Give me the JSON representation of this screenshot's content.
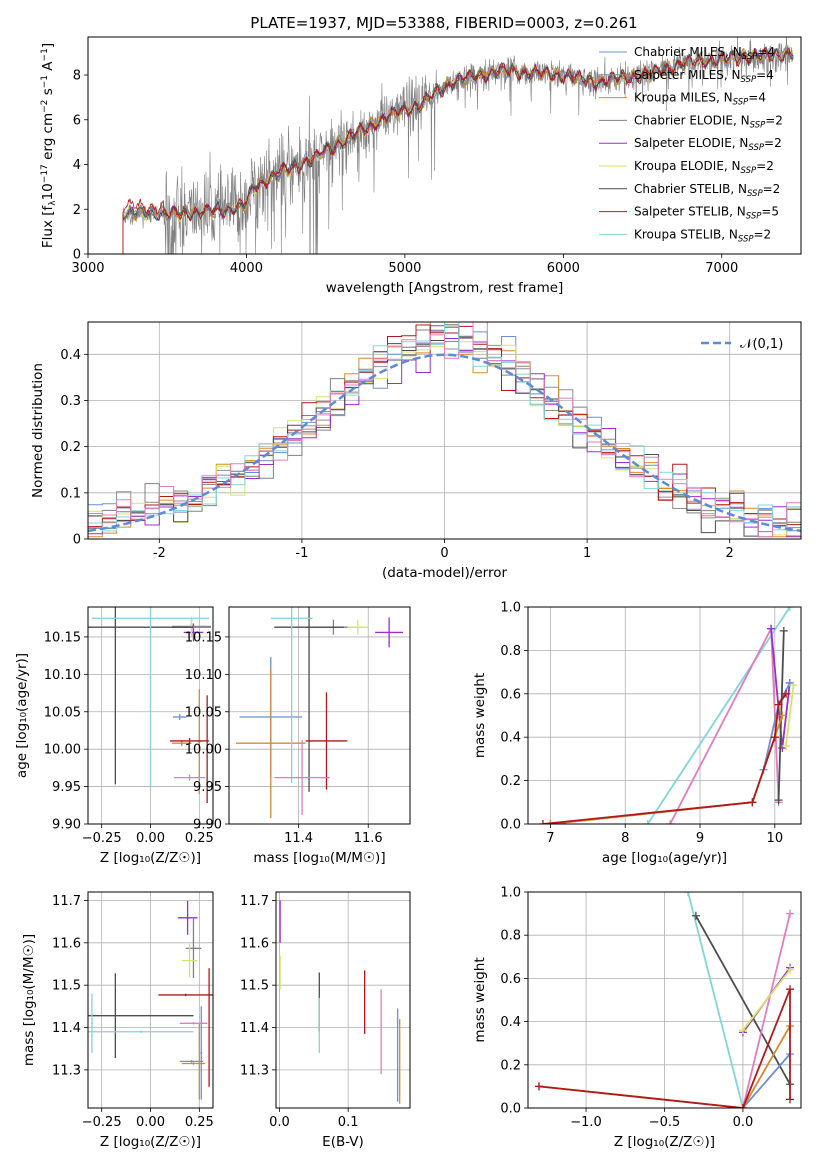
{
  "figure_title": "PLATE=1937, MJD=53388, FIBERID=0003, z=0.261",
  "colors": {
    "Chabrier MILES": "#6a8fd8",
    "Salpeter MILES": "#8f8f8f",
    "Kroupa MILES": "#d98a2b",
    "Chabrier ELODIE": "#808080",
    "Salpeter ELODIE": "#9b30c9",
    "Kroupa ELODIE": "#d6e36a",
    "Chabrier STELIB": "#4d4d4d",
    "Salpeter STELIB": "#b01a1a",
    "Kroupa STELIB": "#7fd6dc",
    "pink": "#e37cbf",
    "normal_curve": "#5b8cd6"
  },
  "chart_data": [
    {
      "id": "spectrum",
      "type": "line",
      "ylabel_html": "Flux [f<tspan dy='3' font-size='9'>λ</tspan><tspan dy='-3'>10</tspan><tspan dy='-5' font-size='9'>−17</tspan><tspan dy='5'> erg cm</tspan><tspan dy='-5' font-size='9'>−2</tspan><tspan dy='5'> s</tspan><tspan dy='-5' font-size='9'>−1</tspan><tspan dy='5'> A</tspan><tspan dy='-5' font-size='9'>−1</tspan><tspan dy='5'>]</tspan>",
      "xlabel": "wavelength [Angstrom, rest frame]",
      "xlim": [
        3000,
        7500
      ],
      "ylim": [
        0,
        9.7
      ],
      "xticks": [
        3000,
        4000,
        5000,
        6000,
        7000
      ],
      "yticks": [
        0,
        2,
        4,
        6,
        8
      ],
      "grid": false,
      "legend_position": "top-right",
      "legend": [
        {
          "name": "Chabrier MILES, N",
          "sub": "SSP",
          "suffix": "=4",
          "color_key": "Chabrier MILES"
        },
        {
          "name": "Salpeter MILES, N",
          "sub": "SSP",
          "suffix": "=4",
          "color_key": "Salpeter MILES"
        },
        {
          "name": "Kroupa MILES, N",
          "sub": "SSP",
          "suffix": "=4",
          "color_key": "Kroupa MILES"
        },
        {
          "name": "Chabrier ELODIE, N",
          "sub": "SSP",
          "suffix": "=2",
          "color_key": "Chabrier ELODIE"
        },
        {
          "name": "Salpeter ELODIE, N",
          "sub": "SSP",
          "suffix": "=2",
          "color_key": "Salpeter ELODIE"
        },
        {
          "name": "Kroupa ELODIE, N",
          "sub": "SSP",
          "suffix": "=2",
          "color_key": "Kroupa ELODIE"
        },
        {
          "name": "Chabrier STELIB, N",
          "sub": "SSP",
          "suffix": "=2",
          "color_key": "Chabrier STELIB"
        },
        {
          "name": "Salpeter STELIB, N",
          "sub": "SSP",
          "suffix": "=5",
          "color_key": "Salpeter STELIB"
        },
        {
          "name": "Kroupa STELIB, N",
          "sub": "SSP",
          "suffix": "=2",
          "color_key": "Kroupa STELIB"
        }
      ],
      "continuum": [
        [
          3220,
          1.8
        ],
        [
          3400,
          1.85
        ],
        [
          3500,
          1.8
        ],
        [
          3700,
          1.9
        ],
        [
          3900,
          2.0
        ],
        [
          3990,
          2.2
        ],
        [
          4050,
          3.0
        ],
        [
          4200,
          3.6
        ],
        [
          4400,
          4.2
        ],
        [
          4700,
          5.4
        ],
        [
          4900,
          6.2
        ],
        [
          5100,
          6.7
        ],
        [
          5300,
          7.7
        ],
        [
          5600,
          8.2
        ],
        [
          6000,
          8.0
        ],
        [
          6200,
          7.7
        ],
        [
          6500,
          8.0
        ],
        [
          6800,
          8.6
        ],
        [
          7000,
          8.7
        ],
        [
          7300,
          8.9
        ],
        [
          7450,
          9.0
        ]
      ],
      "data_start": 3220,
      "data_end": 7450
    },
    {
      "id": "residuals",
      "type": "histogram",
      "xlabel": "(data-model)/error",
      "ylabel": "Normed distribution",
      "xlim": [
        -2.5,
        2.5
      ],
      "ylim": [
        0,
        0.47
      ],
      "xticks": [
        -2,
        -1,
        0,
        1,
        2
      ],
      "yticks": [
        0.0,
        0.1,
        0.2,
        0.3,
        0.4
      ],
      "grid": true,
      "bin_width": 0.1,
      "legend": "𝒩(0,1)",
      "legend_position": "top-right",
      "reference_curve": "normal pdf, mean 0, sigma 1"
    },
    {
      "id": "age_vs_Z",
      "type": "errorbar",
      "xlabel": "Z [log₁₀(Z/Z☉)]",
      "ylabel": "age  [log₁₀(age/yr)]",
      "xlim": [
        -0.32,
        0.32
      ],
      "ylim": [
        9.9,
        10.19
      ],
      "xticks": [
        -0.25,
        0.0,
        0.25
      ],
      "xticklabels": [
        "−0.25",
        "0.00",
        "0.25"
      ],
      "yticks": [
        9.9,
        9.95,
        10.0,
        10.05,
        10.1,
        10.15
      ],
      "yticklabels": [
        "9.90",
        "9.95",
        "10.00",
        "10.05",
        "10.10",
        "10.15"
      ],
      "grid": true,
      "points": [
        {
          "x": 0.15,
          "y": 10.043,
          "xerr": 0.035,
          "yerr": 0.004,
          "c": "Chabrier MILES"
        },
        {
          "x": 0.21,
          "y": 10.164,
          "xerr": 0.1,
          "yerr": 0.004,
          "c": "Salpeter MILES"
        },
        {
          "x": 0.16,
          "y": 10.008,
          "xerr": 0.05,
          "yerr": 0.004,
          "c": "Kroupa MILES"
        },
        {
          "x": 0.25,
          "y": 10.01,
          "xerr": 0.008,
          "yerr": 0.07,
          "c": "Kroupa MILES"
        },
        {
          "x": 0.21,
          "y": 10.163,
          "xerr": 0.1,
          "yerr": 0.012,
          "c": "Chabrier ELODIE"
        },
        {
          "x": 0.22,
          "y": 10.156,
          "xerr": 0.05,
          "yerr": 0.012,
          "c": "Salpeter ELODIE"
        },
        {
          "x": 0.21,
          "y": 10.163,
          "xerr": 0.012,
          "yerr": 0.014,
          "c": "Kroupa ELODIE"
        },
        {
          "x": -0.18,
          "y": 10.163,
          "xerr": 0.4,
          "yerr": 0.21,
          "c": "Chabrier STELIB"
        },
        {
          "x": 0.2,
          "y": 10.011,
          "xerr": 0.1,
          "yerr": 0.004,
          "c": "Salpeter STELIB"
        },
        {
          "x": 0.29,
          "y": 10.0,
          "xerr": 0.004,
          "yerr": 0.072,
          "c": "Salpeter STELIB"
        },
        {
          "x": 0.0,
          "y": 10.175,
          "xerr": 0.3,
          "yerr": 0.225,
          "c": "Kroupa STELIB"
        },
        {
          "x": 0.2,
          "y": 9.962,
          "xerr": 0.08,
          "yerr": 0.004,
          "c": "pink"
        }
      ]
    },
    {
      "id": "age_vs_mass",
      "type": "errorbar",
      "xlabel": "mass [log₁₀(M/M☉)]",
      "xlim": [
        11.2,
        11.72
      ],
      "ylim": [
        9.9,
        10.19
      ],
      "xticks": [
        11.4,
        11.6
      ],
      "xticklabels": [
        "11.4",
        "11.6"
      ],
      "yticks": [
        9.9,
        9.95,
        10.0,
        10.05,
        10.1,
        10.15
      ],
      "yticklabels": [
        "9.90",
        "9.95",
        "10.00",
        "10.05",
        "10.10",
        "10.15"
      ],
      "grid": true,
      "points": [
        {
          "x": 11.32,
          "y": 10.043,
          "xerr": 0.09,
          "yerr": 0.08,
          "c": "Chabrier MILES"
        },
        {
          "x": 11.32,
          "y": 10.008,
          "xerr": 0.1,
          "yerr": 0.1,
          "c": "Kroupa MILES"
        },
        {
          "x": 11.5,
          "y": 10.163,
          "xerr": 0.08,
          "yerr": 0.01,
          "c": "Chabrier ELODIE"
        },
        {
          "x": 11.66,
          "y": 10.156,
          "xerr": 0.04,
          "yerr": 0.02,
          "c": "Salpeter ELODIE"
        },
        {
          "x": 11.57,
          "y": 10.163,
          "xerr": 0.03,
          "yerr": 0.01,
          "c": "Kroupa ELODIE"
        },
        {
          "x": 11.43,
          "y": 10.163,
          "xerr": 0.1,
          "yerr": 0.22,
          "c": "Chabrier STELIB"
        },
        {
          "x": 11.48,
          "y": 10.011,
          "xerr": 0.06,
          "yerr": 0.065,
          "c": "Salpeter STELIB"
        },
        {
          "x": 11.38,
          "y": 10.175,
          "xerr": 0.06,
          "yerr": 0.22,
          "c": "Kroupa STELIB"
        },
        {
          "x": 11.41,
          "y": 9.962,
          "xerr": 0.08,
          "yerr": 0.05,
          "c": "pink"
        }
      ]
    },
    {
      "id": "weight_vs_age",
      "type": "line",
      "xlabel": "age  [log₁₀(age/yr)]",
      "ylabel": "mass weight",
      "xlim": [
        6.7,
        10.35
      ],
      "ylim": [
        0,
        1.0
      ],
      "xticks": [
        7,
        8,
        9,
        10
      ],
      "xticklabels": [
        "7",
        "8",
        "9",
        "10"
      ],
      "yticks": [
        0,
        0.2,
        0.4,
        0.6,
        0.8,
        1.0
      ],
      "yticklabels": [
        "0.0",
        "0.2",
        "0.4",
        "0.6",
        "0.8",
        "1.0"
      ],
      "grid": true,
      "series": [
        {
          "c": "Kroupa STELIB",
          "points": [
            [
              8.3,
              0.0
            ],
            [
              10.2,
              1.0
            ]
          ]
        },
        {
          "c": "pink",
          "points": [
            [
              8.6,
              0.0
            ],
            [
              9.95,
              0.9
            ],
            [
              10.05,
              0.1
            ]
          ]
        },
        {
          "c": "Salpeter ELODIE",
          "points": [
            [
              9.95,
              0.9
            ],
            [
              10.1,
              0.35
            ],
            [
              10.2,
              0.65
            ]
          ]
        },
        {
          "c": "Chabrier MILES",
          "points": [
            [
              7.0,
              0.0
            ],
            [
              9.7,
              0.1
            ],
            [
              9.85,
              0.25
            ],
            [
              10.05,
              0.55
            ],
            [
              10.2,
              0.65
            ]
          ]
        },
        {
          "c": "Kroupa ELODIE",
          "points": [
            [
              10.15,
              0.36
            ],
            [
              10.25,
              0.64
            ]
          ]
        },
        {
          "c": "Chabrier STELIB",
          "points": [
            [
              10.05,
              0.11
            ],
            [
              10.12,
              0.89
            ]
          ]
        },
        {
          "c": "Kroupa MILES",
          "points": [
            [
              7.0,
              0.0
            ],
            [
              9.7,
              0.1
            ],
            [
              10.0,
              0.4
            ],
            [
              10.1,
              0.5
            ]
          ]
        },
        {
          "c": "Salpeter STELIB",
          "points": [
            [
              6.9,
              0.0
            ],
            [
              9.7,
              0.1
            ],
            [
              10.0,
              0.4
            ],
            [
              10.05,
              0.55
            ],
            [
              10.15,
              0.6
            ]
          ]
        }
      ]
    },
    {
      "id": "mass_vs_Z",
      "type": "errorbar",
      "xlabel": "Z [log₁₀(Z/Z☉)]",
      "ylabel": "mass [log₁₀(M/M☉)]",
      "xlim": [
        -0.32,
        0.32
      ],
      "ylim": [
        11.21,
        11.72
      ],
      "xticks": [
        -0.25,
        0.0,
        0.25
      ],
      "xticklabels": [
        "−0.25",
        "0.00",
        "0.25"
      ],
      "yticks": [
        11.3,
        11.4,
        11.5,
        11.6,
        11.7
      ],
      "yticklabels": [
        "11.3",
        "11.4",
        "11.5",
        "11.6",
        "11.7"
      ],
      "grid": true,
      "points": [
        {
          "x": 0.21,
          "y": 11.32,
          "xerr": 0.06,
          "yerr": 0.003,
          "c": "Chabrier MILES"
        },
        {
          "x": 0.26,
          "y": 11.34,
          "xerr": 0.005,
          "yerr": 0.11,
          "c": "Chabrier MILES"
        },
        {
          "x": 0.22,
          "y": 11.315,
          "xerr": 0.06,
          "yerr": 0.003,
          "c": "Kroupa MILES"
        },
        {
          "x": 0.25,
          "y": 11.32,
          "xerr": 0.005,
          "yerr": 0.09,
          "c": "Kroupa MILES"
        },
        {
          "x": 0.22,
          "y": 11.587,
          "xerr": 0.04,
          "yerr": 0.07,
          "c": "Chabrier ELODIE"
        },
        {
          "x": 0.19,
          "y": 11.659,
          "xerr": 0.05,
          "yerr": 0.04,
          "c": "Salpeter ELODIE"
        },
        {
          "x": 0.2,
          "y": 11.558,
          "xerr": 0.04,
          "yerr": 0.04,
          "c": "Kroupa ELODIE"
        },
        {
          "x": -0.18,
          "y": 11.428,
          "xerr": 0.4,
          "yerr": 0.1,
          "c": "Chabrier STELIB"
        },
        {
          "x": 0.18,
          "y": 11.477,
          "xerr": 0.14,
          "yerr": 0.003,
          "c": "Salpeter STELIB"
        },
        {
          "x": 0.3,
          "y": 11.4,
          "xerr": 0.003,
          "yerr": 0.14,
          "c": "Salpeter STELIB"
        },
        {
          "x": -0.3,
          "y": 11.41,
          "xerr": 0.005,
          "yerr": 0.07,
          "c": "Kroupa STELIB"
        },
        {
          "x": -0.05,
          "y": 11.39,
          "xerr": 0.27,
          "yerr": 0.003,
          "c": "Kroupa STELIB"
        },
        {
          "x": 0.22,
          "y": 11.41,
          "xerr": 0.07,
          "yerr": 0.003,
          "c": "pink"
        }
      ]
    },
    {
      "id": "mass_vs_ebv",
      "type": "errorbar",
      "xlabel": "E(B-V)",
      "xlim": [
        -0.005,
        0.19
      ],
      "ylim": [
        11.21,
        11.72
      ],
      "xticks": [
        0.0,
        0.1
      ],
      "xticklabels": [
        "0.0",
        "0.1"
      ],
      "yticks": [
        11.3,
        11.4,
        11.5,
        11.6,
        11.7
      ],
      "yticklabels": [
        "11.3",
        "11.4",
        "11.5",
        "11.6",
        "11.7"
      ],
      "grid": true,
      "points": [
        {
          "x": 0.001,
          "y": 11.65,
          "xerr": 0.0,
          "yerr": 0.05,
          "c": "Salpeter ELODIE"
        },
        {
          "x": 0.001,
          "y": 11.53,
          "xerr": 0.0,
          "yerr": 0.04,
          "c": "Kroupa ELODIE"
        },
        {
          "x": 0.058,
          "y": 11.46,
          "xerr": 0.0,
          "yerr": 0.07,
          "c": "Chabrier STELIB"
        },
        {
          "x": 0.058,
          "y": 11.405,
          "xerr": 0.0,
          "yerr": 0.065,
          "c": "Kroupa STELIB"
        },
        {
          "x": 0.124,
          "y": 11.46,
          "xerr": 0.0,
          "yerr": 0.075,
          "c": "Salpeter STELIB"
        },
        {
          "x": 0.148,
          "y": 11.39,
          "xerr": 0.0,
          "yerr": 0.1,
          "c": "pink"
        },
        {
          "x": 0.172,
          "y": 11.335,
          "xerr": 0.0,
          "yerr": 0.11,
          "c": "Chabrier MILES"
        },
        {
          "x": 0.175,
          "y": 11.32,
          "xerr": 0.0,
          "yerr": 0.1,
          "c": "Kroupa MILES"
        }
      ]
    },
    {
      "id": "weight_vs_Z",
      "type": "line",
      "xlabel": "Z [log₁₀(Z/Z☉)]",
      "ylabel": "mass weight",
      "xlim": [
        -1.37,
        0.37
      ],
      "ylim": [
        0,
        1.0
      ],
      "xticks": [
        -1.0,
        -0.5,
        0.0
      ],
      "xticklabels": [
        "−1.0",
        "−0.5",
        "0.0"
      ],
      "yticks": [
        0,
        0.2,
        0.4,
        0.6,
        0.8,
        1.0
      ],
      "yticklabels": [
        "0.0",
        "0.2",
        "0.4",
        "0.6",
        "0.8",
        "1.0"
      ],
      "grid": true,
      "series": [
        {
          "c": "Kroupa STELIB",
          "points": [
            [
              -0.35,
              1.0
            ],
            [
              0.0,
              0.0
            ]
          ]
        },
        {
          "c": "Chabrier STELIB",
          "points": [
            [
              -0.3,
              0.89
            ],
            [
              0.3,
              0.11
            ]
          ]
        },
        {
          "c": "pink",
          "points": [
            [
              0.0,
              0.0
            ],
            [
              0.3,
              0.9
            ]
          ]
        },
        {
          "c": "Salpeter ELODIE",
          "points": [
            [
              0.0,
              0.35
            ],
            [
              0.3,
              0.65
            ]
          ]
        },
        {
          "c": "Kroupa ELODIE",
          "points": [
            [
              0.0,
              0.36
            ],
            [
              0.3,
              0.64
            ]
          ]
        },
        {
          "c": "Chabrier MILES",
          "points": [
            [
              0.0,
              0.0
            ],
            [
              0.3,
              0.25
            ]
          ]
        },
        {
          "c": "Kroupa MILES",
          "points": [
            [
              -1.3,
              0.1
            ],
            [
              0.0,
              0.0
            ],
            [
              0.3,
              0.38
            ]
          ]
        },
        {
          "c": "Salpeter STELIB",
          "points": [
            [
              -1.3,
              0.1
            ],
            [
              0.0,
              0.0
            ],
            [
              0.3,
              0.55
            ],
            [
              0.3,
              0.04
            ]
          ]
        }
      ]
    }
  ]
}
